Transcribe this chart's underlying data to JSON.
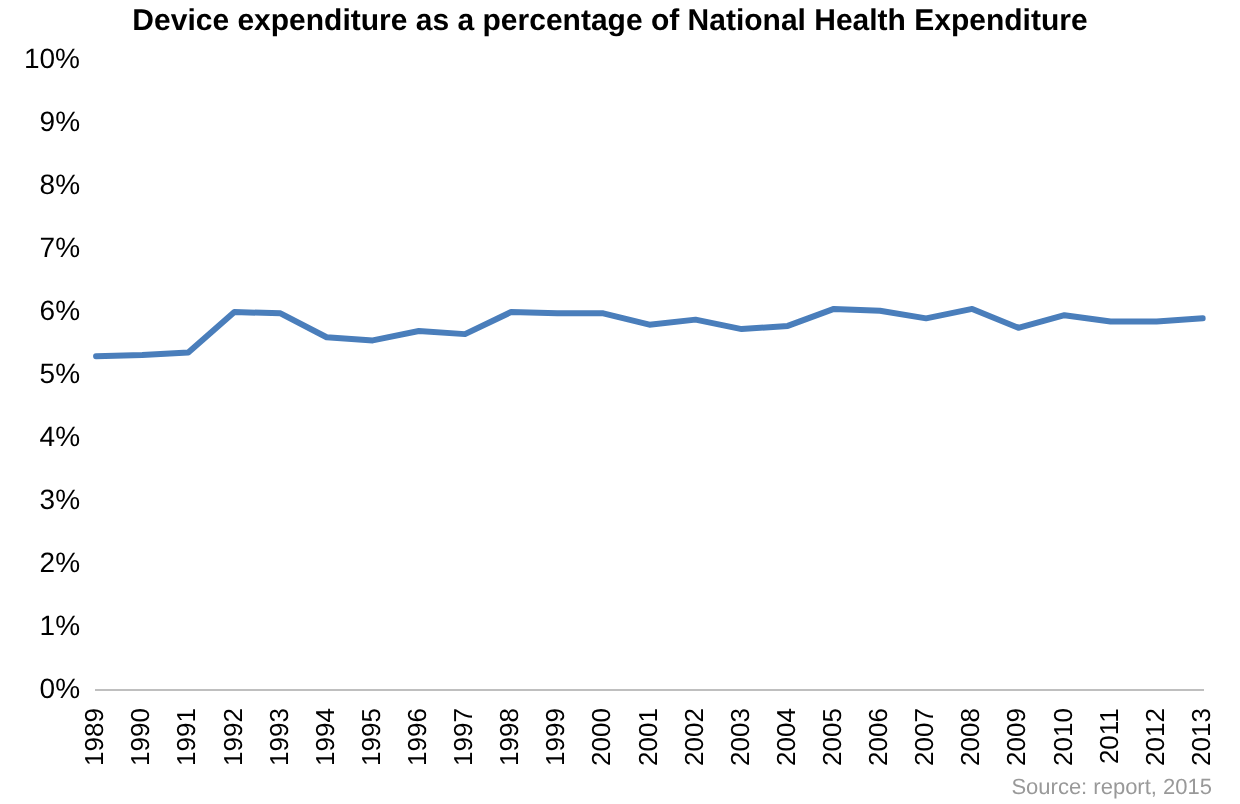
{
  "chart_data": {
    "type": "line",
    "title": "Device expenditure as a percentage of National Health Expenditure",
    "categories": [
      "1989",
      "1990",
      "1991",
      "1992",
      "1993",
      "1994",
      "1995",
      "1996",
      "1997",
      "1998",
      "1999",
      "2000",
      "2001",
      "2002",
      "2003",
      "2004",
      "2005",
      "2006",
      "2007",
      "2008",
      "2009",
      "2010",
      "2011",
      "2012",
      "2013"
    ],
    "series": [
      {
        "color": "#4a7ebb",
        "values": [
          5.3,
          5.32,
          5.36,
          6.0,
          5.98,
          5.6,
          5.55,
          5.7,
          5.65,
          6.0,
          5.98,
          5.98,
          5.8,
          5.88,
          5.73,
          5.78,
          6.05,
          6.02,
          5.9,
          6.05,
          5.75,
          5.95,
          5.85,
          5.85,
          5.9
        ]
      }
    ],
    "ylim": [
      0,
      10
    ],
    "yticks": [
      {
        "value": 0,
        "label": "0%"
      },
      {
        "value": 1,
        "label": "1%"
      },
      {
        "value": 2,
        "label": "2%"
      },
      {
        "value": 3,
        "label": "3%"
      },
      {
        "value": 4,
        "label": "4%"
      },
      {
        "value": 5,
        "label": "5%"
      },
      {
        "value": 6,
        "label": "6%"
      },
      {
        "value": 7,
        "label": "7%"
      },
      {
        "value": 8,
        "label": "8%"
      },
      {
        "value": 9,
        "label": "9%"
      },
      {
        "value": 10,
        "label": "10%"
      }
    ],
    "grid": false,
    "legend": false,
    "marker": "none",
    "line_style": "solid",
    "annotations": [
      "Source: report, 2015"
    ]
  }
}
